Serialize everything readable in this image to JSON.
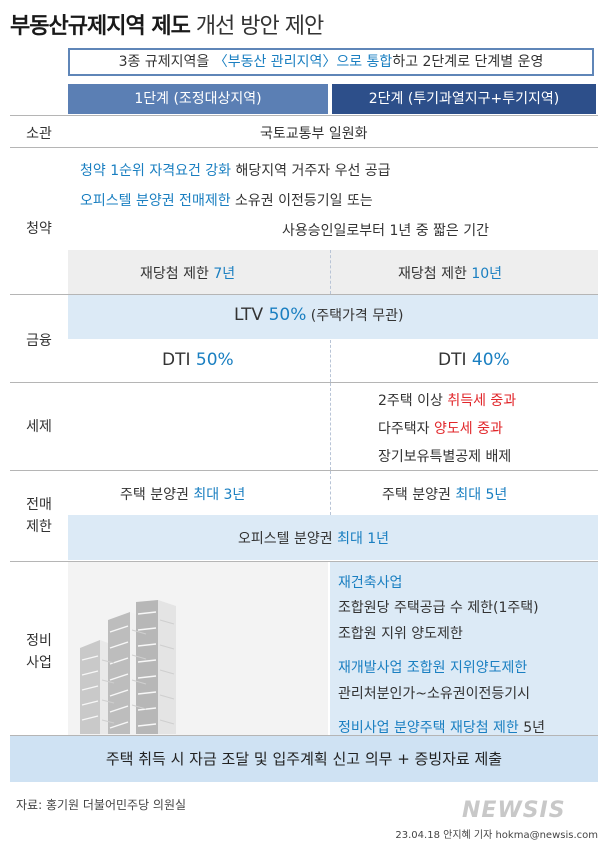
{
  "title": {
    "bold": "부동산규제지역 제도",
    "normal": " 개선 방안 제안"
  },
  "subtitle": {
    "pre": "3종 규제지역을 ",
    "hl": "〈부동산 관리지역〉으로 통합",
    "post": "하고 2단계로 단계별 운영"
  },
  "headers": {
    "stage1": "1단계 (조정대상지역)",
    "stage2": "2단계 (투기과열지구+투기지역)"
  },
  "rows": {
    "authority": {
      "label": "소관",
      "value": "국토교통부 일원화"
    },
    "subscription": {
      "label": "청약",
      "line1_hl": "청약 1순위 자격요건 강화",
      "line1_rest": " 해당지역 거주자 우선 공급",
      "line2_hl": "오피스텔 분양권 전매제한",
      "line2_rest": " 소유권 이전등기일 또는",
      "line3": "사용승인일로부터 1년 중 짧은 기간",
      "stage1_pre": "재당첨 제한 ",
      "stage1_val": "7년",
      "stage2_pre": "재당첨 제한 ",
      "stage2_val": "10년"
    },
    "finance": {
      "label": "금융",
      "ltv_pre": "LTV ",
      "ltv_val": "50%",
      "ltv_post": " (주택가격 무관)",
      "dti1_pre": "DTI ",
      "dti1_val": "50%",
      "dti2_pre": "DTI ",
      "dti2_val": "40%"
    },
    "tax": {
      "label": "세제",
      "l1_pre": "2주택 이상 ",
      "l1_hl": "취득세 중과",
      "l2_pre": "다주택자 ",
      "l2_hl": "양도세 중과",
      "l3": "장기보유특별공제 배제"
    },
    "resale": {
      "label_1": "전매",
      "label_2": "제한",
      "s1_pre": "주택 분양권 ",
      "s1_hl": "최대 3년",
      "s2_pre": "주택 분양권 ",
      "s2_hl": "최대 5년",
      "off_pre": "오피스텔 분양권 ",
      "off_hl": "최대  1년"
    },
    "redevelop": {
      "label_1": "정비",
      "label_2": "사업",
      "h1": "재건축사업",
      "l1": "조합원당 주택공급 수 제한(1주택)",
      "l2": "조합원 지위 양도제한",
      "h2": "재개발사업 조합원 지위양도제한",
      "l3": "관리처분인가~소유권이전등기시",
      "h3": "정비사업 분양주택 재당첨 제한",
      "h3_val": " 5년"
    }
  },
  "bottom": "주택 취득 시 자금 조달 및 입주계획 신고 의무 + 증빙자료 제출",
  "source": "자료: 홍기원 더불어민주당 의원실",
  "credit": "23.04.18 안지혜 기자 hokma@newsis.com",
  "logo": "NEWSIS",
  "colors": {
    "accent_blue": "#1a7fc1",
    "accent_red": "#e1262a",
    "header1": "#5b7fb4",
    "header2": "#2d4f8a",
    "band_blue": "#dceaf6"
  }
}
